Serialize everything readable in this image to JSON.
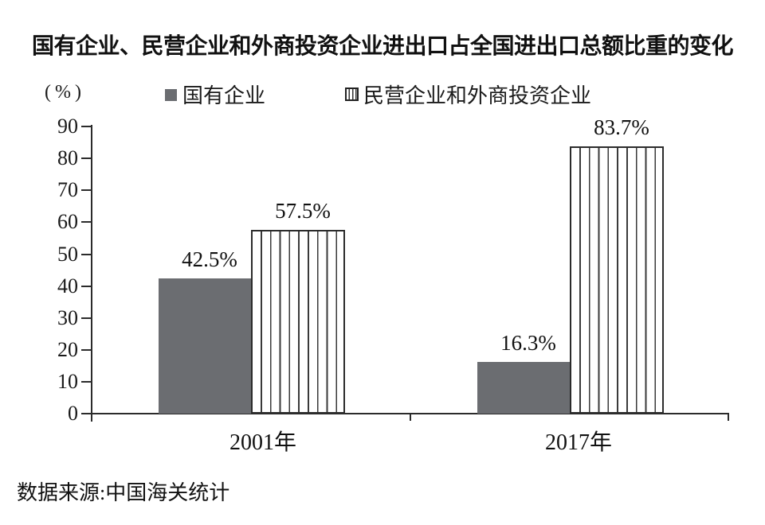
{
  "title": "国有企业、民营企业和外商投资企业进出口占全国进出口总额比重的变化",
  "unit_label": "(%)",
  "legend": [
    {
      "label": "国有企业",
      "swatch": "solid-gray-square"
    },
    {
      "label": "民营企业和外商投资企业",
      "swatch": "vertical-striped-square"
    }
  ],
  "source": "数据来源:中国海关统计",
  "colors": {
    "solid_bar_fill": "#6b6d71",
    "stripe_line": "#3a3a3a",
    "stripe_bar_border": "#2b2b2b",
    "axis": "#2b2b2b",
    "text": "#111111",
    "background": "#ffffff"
  },
  "chart_data": {
    "type": "bar",
    "title": "国有企业、民营企业和外商投资企业进出口占全国进出口总额比重的变化",
    "categories": [
      "2001年",
      "2017年"
    ],
    "series": [
      {
        "name": "国有企业",
        "values": [
          42.5,
          16.3
        ],
        "style": "solid"
      },
      {
        "name": "民营企业和外商投资企业",
        "values": [
          57.5,
          83.7
        ],
        "style": "striped"
      }
    ],
    "value_labels": [
      [
        "42.5%",
        "57.5%"
      ],
      [
        "16.3%",
        "83.7%"
      ]
    ],
    "xlabel": "",
    "ylabel": "(%)",
    "ylim": [
      0,
      90
    ],
    "yticks": [
      0,
      10,
      20,
      30,
      40,
      50,
      60,
      70,
      80,
      90
    ],
    "grid": false,
    "legend_position": "top",
    "source": "数据来源:中国海关统计"
  }
}
